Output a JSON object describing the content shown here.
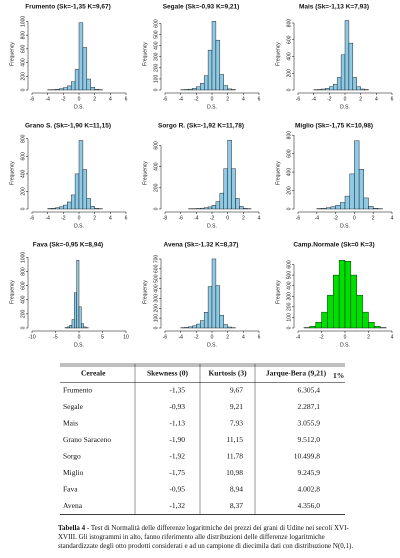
{
  "chart_data": [
    {
      "type": "histogram",
      "title": "Frumento (Sk=-1,35 K=9,67)",
      "x_label": "D.S.",
      "y_label": "Frequency",
      "color": "#8ecae6",
      "bins": [
        -4,
        -3.5,
        -3,
        -2.5,
        -2,
        -1.5,
        -1,
        -0.5,
        0,
        0.5,
        1,
        1.5,
        2,
        2.5,
        3
      ],
      "values": [
        3,
        5,
        10,
        20,
        35,
        60,
        120,
        300,
        980,
        620,
        160,
        40,
        12,
        5
      ],
      "xlim": [
        -6,
        6
      ],
      "xticks": [
        -6,
        -4,
        -2,
        0,
        2,
        4,
        6
      ],
      "ylim": [
        0,
        1050
      ],
      "yticks": [
        0,
        200,
        400,
        600,
        800,
        1000
      ]
    },
    {
      "type": "histogram",
      "title": "Segale (Sk=-0,93 K=9,21)",
      "x_label": "D.S.",
      "y_label": "Frequency",
      "color": "#8ecae6",
      "bins": [
        -4,
        -3.5,
        -3,
        -2.5,
        -2,
        -1.5,
        -1,
        -0.5,
        0,
        0.5,
        1,
        1.5,
        2,
        2.5,
        3
      ],
      "values": [
        2,
        4,
        8,
        15,
        30,
        60,
        130,
        360,
        620,
        450,
        140,
        40,
        10,
        4
      ],
      "xlim": [
        -6,
        6
      ],
      "xticks": [
        -6,
        -4,
        -2,
        0,
        2,
        4,
        6
      ],
      "ylim": [
        0,
        650
      ],
      "yticks": [
        0,
        100,
        200,
        300,
        400,
        500,
        600
      ]
    },
    {
      "type": "histogram",
      "title": "Mais (Sk=-1,13 K=7,93)",
      "x_label": "D.S.",
      "y_label": "Frequency",
      "color": "#8ecae6",
      "bins": [
        -4,
        -3.5,
        -3,
        -2.5,
        -2,
        -1.5,
        -1,
        -0.5,
        0,
        0.5,
        1,
        1.5,
        2,
        2.5,
        3
      ],
      "values": [
        3,
        6,
        12,
        20,
        40,
        70,
        150,
        420,
        830,
        560,
        150,
        40,
        12,
        5
      ],
      "xlim": [
        -6,
        6
      ],
      "xticks": [
        -6,
        -4,
        -2,
        0,
        2,
        4,
        6
      ],
      "ylim": [
        0,
        860
      ],
      "yticks": [
        0,
        200,
        400,
        600,
        800
      ]
    },
    {
      "type": "histogram",
      "title": "Grano S. (Sk=-1,90 K=11,15)",
      "x_label": "D.S.",
      "y_label": "Frequency",
      "color": "#8ecae6",
      "bins": [
        -4,
        -3.5,
        -3,
        -2.5,
        -2,
        -1.5,
        -1,
        -0.5,
        0,
        0.5,
        1,
        1.5,
        2,
        2.5,
        3
      ],
      "values": [
        5,
        8,
        15,
        25,
        45,
        80,
        160,
        400,
        780,
        450,
        120,
        30,
        8,
        3
      ],
      "xlim": [
        -6,
        6
      ],
      "xticks": [
        -6,
        -4,
        -2,
        0,
        2,
        4,
        6
      ],
      "ylim": [
        0,
        820
      ],
      "yticks": [
        0,
        200,
        400,
        600,
        800
      ]
    },
    {
      "type": "histogram",
      "title": "Sorgo R. (Sk=-1,92 K=11,78)",
      "x_label": "D.S.",
      "y_label": "Frequency",
      "color": "#8ecae6",
      "bins": [
        -5,
        -4.5,
        -4,
        -3.5,
        -3,
        -2.5,
        -2,
        -1.5,
        -1,
        -0.5,
        0,
        0.5,
        1,
        1.5,
        2,
        2.5,
        3
      ],
      "values": [
        2,
        3,
        5,
        8,
        12,
        20,
        35,
        70,
        150,
        380,
        650,
        380,
        100,
        25,
        6,
        2
      ],
      "xlim": [
        -8,
        4
      ],
      "xticks": [
        -8,
        -6,
        -4,
        -2,
        0,
        2,
        4
      ],
      "ylim": [
        0,
        680
      ],
      "yticks": [
        0,
        200,
        400,
        600
      ]
    },
    {
      "type": "histogram",
      "title": "Miglio (Sk=-1,75 K=10,98)",
      "x_label": "D.S.",
      "y_label": "Frequency",
      "color": "#8ecae6",
      "bins": [
        -4,
        -3.5,
        -3,
        -2.5,
        -2,
        -1.5,
        -1,
        -0.5,
        0,
        0.5,
        1,
        1.5,
        2,
        2.5,
        3
      ],
      "values": [
        4,
        8,
        14,
        25,
        40,
        70,
        140,
        380,
        740,
        430,
        120,
        30,
        8,
        3
      ],
      "xlim": [
        -6,
        4
      ],
      "xticks": [
        -6,
        -4,
        -2,
        0,
        2,
        4
      ],
      "ylim": [
        0,
        780
      ],
      "yticks": [
        0,
        200,
        400,
        600,
        800
      ]
    },
    {
      "type": "histogram",
      "title": "Fava (Sk=-0,95 K=8,94)",
      "x_label": "D.S.",
      "y_label": "Frequency",
      "color": "#8ecae6",
      "bins": [
        -3,
        -2.5,
        -2,
        -1.5,
        -1,
        -0.5,
        0,
        0.5,
        1,
        1.5,
        2
      ],
      "values": [
        5,
        15,
        40,
        120,
        500,
        960,
        300,
        60,
        15,
        4
      ],
      "xlim": [
        -10,
        10
      ],
      "xticks": [
        -10,
        -5,
        0,
        5,
        10
      ],
      "ylim": [
        0,
        1020
      ],
      "yticks": [
        0,
        200,
        400,
        600,
        800,
        1000
      ]
    },
    {
      "type": "histogram",
      "title": "Avena (Sk=-1.32 K=8,37)",
      "x_label": "D.S.",
      "y_label": "Frequency",
      "color": "#8ecae6",
      "bins": [
        -4,
        -3.5,
        -3,
        -2.5,
        -2,
        -1.5,
        -1,
        -0.5,
        0,
        0.5,
        1,
        1.5,
        2,
        2.5,
        3
      ],
      "values": [
        3,
        6,
        12,
        22,
        40,
        75,
        160,
        420,
        700,
        430,
        130,
        35,
        10,
        3
      ],
      "xlim": [
        -6,
        6
      ],
      "xticks": [
        -6,
        -4,
        -2,
        0,
        2,
        4,
        6
      ],
      "ylim": [
        0,
        730
      ],
      "yticks": [
        0,
        100,
        200,
        300,
        400,
        500,
        600,
        700
      ]
    },
    {
      "type": "histogram",
      "title": "Camp.Normale (Sk=0 K=3)",
      "x_label": "D.S.",
      "y_label": "Frequency",
      "color": "#00e000",
      "bins": [
        -3.5,
        -3,
        -2.5,
        -2,
        -1.5,
        -1,
        -0.5,
        0,
        0.5,
        1,
        1.5,
        2,
        2.5,
        3,
        3.5
      ],
      "values": [
        4,
        16,
        55,
        150,
        310,
        500,
        640,
        630,
        500,
        310,
        150,
        55,
        16,
        4
      ],
      "xlim": [
        -4,
        4
      ],
      "xticks": [
        -4,
        -2,
        0,
        2,
        4
      ],
      "ylim": [
        0,
        680
      ],
      "yticks": [
        0,
        100,
        200,
        300,
        400,
        500,
        600
      ]
    }
  ],
  "table": {
    "columns": [
      "Cereale",
      "Skewness (0)",
      "Kurtosis (3)",
      "Jarque-Bera (9,21)"
    ],
    "jb_subscript": "1%",
    "rows": [
      [
        "Frumento",
        "-1,35",
        "9,67",
        "6.305,4"
      ],
      [
        "Segale",
        "-0,93",
        "9,21",
        "2.287,1"
      ],
      [
        "Mais",
        "-1,13",
        "7,93",
        "3.055,9"
      ],
      [
        "Grano Saraceno",
        "-1,90",
        "11,15",
        "9.512,0"
      ],
      [
        "Sorgo",
        "-1,92",
        "11,78",
        "10.499,8"
      ],
      [
        "Miglio",
        "-1,75",
        "10,98",
        "9.245,9"
      ],
      [
        "Fava",
        "-0,95",
        "8,94",
        "4.002,8"
      ],
      [
        "Avena",
        "-1,32",
        "8,37",
        "4.356,0"
      ]
    ]
  },
  "caption_label": "Tabella 4",
  "caption_text": "- Test di Normalità delle differenze logaritmiche dei prezzi dei grani di Udine nei secoli XVI-XVIII. Gli istogrammi in alto, fanno riferimento alle distribuzioni delle differenze logaritmiche standardizzate degli otto prodotti considerati e ad un campione di diecimila dati con distribuzione N(0,1)."
}
